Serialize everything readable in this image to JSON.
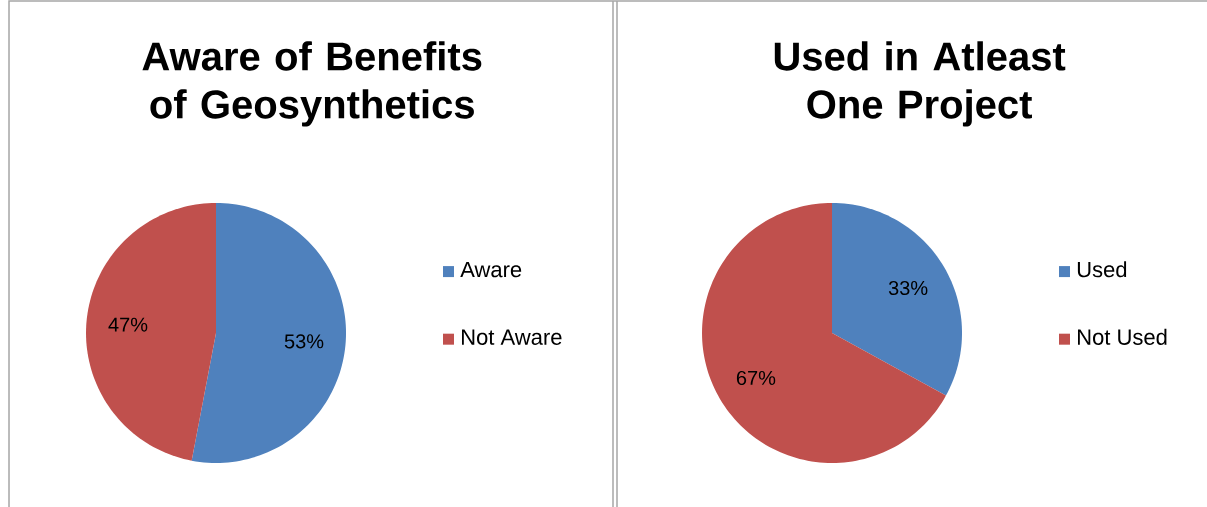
{
  "chart_data": [
    {
      "type": "pie",
      "title": "Aware of Benefits of Geosynthetics",
      "categories": [
        "Aware",
        "Not Aware"
      ],
      "values": [
        53,
        47
      ],
      "value_labels": [
        "53%",
        "47%"
      ],
      "colors": [
        "#4f81bd",
        "#c0504d"
      ],
      "legend": "right"
    },
    {
      "type": "pie",
      "title": "Used in Atleast One Project",
      "categories": [
        "Used",
        "Not Used"
      ],
      "values": [
        33,
        67
      ],
      "value_labels": [
        "33%",
        "67%"
      ],
      "colors": [
        "#4f81bd",
        "#c0504d"
      ],
      "legend": "right"
    }
  ]
}
